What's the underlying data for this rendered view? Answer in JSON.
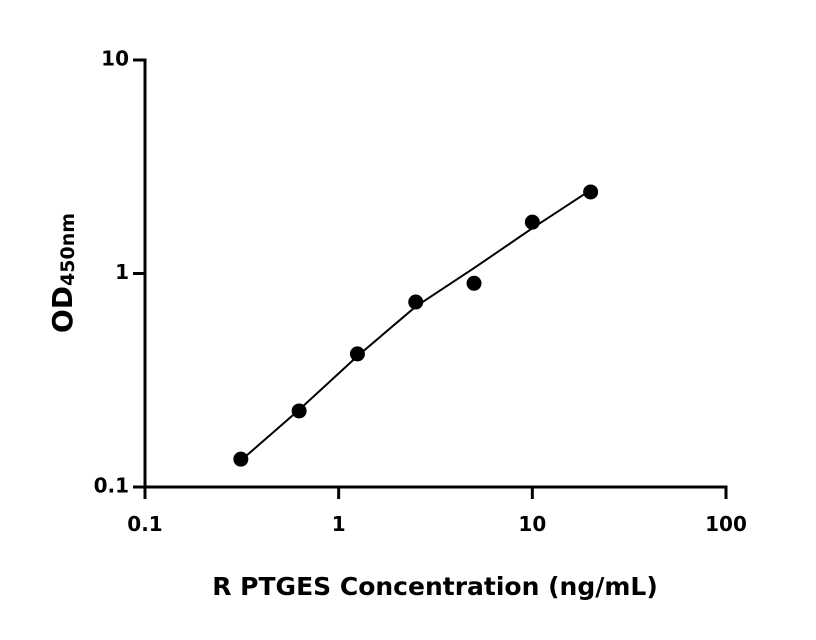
{
  "chart_data": {
    "type": "scatter",
    "xlabel": "R PTGES Concentration (ng/mL)",
    "ylabel": "OD",
    "ylabel_sub": "450nm",
    "x": [
      0.3125,
      0.625,
      1.25,
      2.5,
      5,
      10,
      20
    ],
    "values": [
      0.135,
      0.227,
      0.42,
      0.735,
      0.9,
      1.74,
      2.41
    ],
    "color": "#000000",
    "fit": {
      "x": [
        0.3125,
        0.625,
        1.25,
        2.5,
        5,
        10,
        20
      ],
      "values": [
        0.133,
        0.23,
        0.41,
        0.7,
        1.06,
        1.63,
        2.46
      ],
      "color": "#000000"
    },
    "xlog": true,
    "ylog": true,
    "xlim": [
      0.1,
      100
    ],
    "ylim": [
      0.1,
      10
    ],
    "xticks": [
      0.1,
      1,
      10,
      100
    ],
    "yticks": [
      0.1,
      1,
      10
    ]
  }
}
